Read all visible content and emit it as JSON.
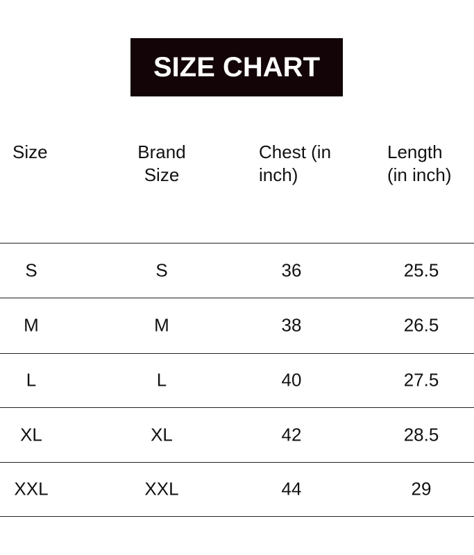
{
  "title": "SIZE CHART",
  "colors": {
    "title_background": "#120407",
    "title_text": "#ffffff"
  },
  "table": {
    "headers": [
      [
        "Size"
      ],
      [
        "Brand",
        "Size"
      ],
      [
        "Chest (in",
        "inch)"
      ],
      [
        "Length",
        "(in inch)"
      ]
    ],
    "rows": [
      [
        "S",
        "S",
        "36",
        "25.5"
      ],
      [
        "M",
        "M",
        "38",
        "26.5"
      ],
      [
        "L",
        "L",
        "40",
        "27.5"
      ],
      [
        "XL",
        "XL",
        "42",
        "28.5"
      ],
      [
        "XXL",
        "XXL",
        "44",
        "29"
      ]
    ]
  }
}
